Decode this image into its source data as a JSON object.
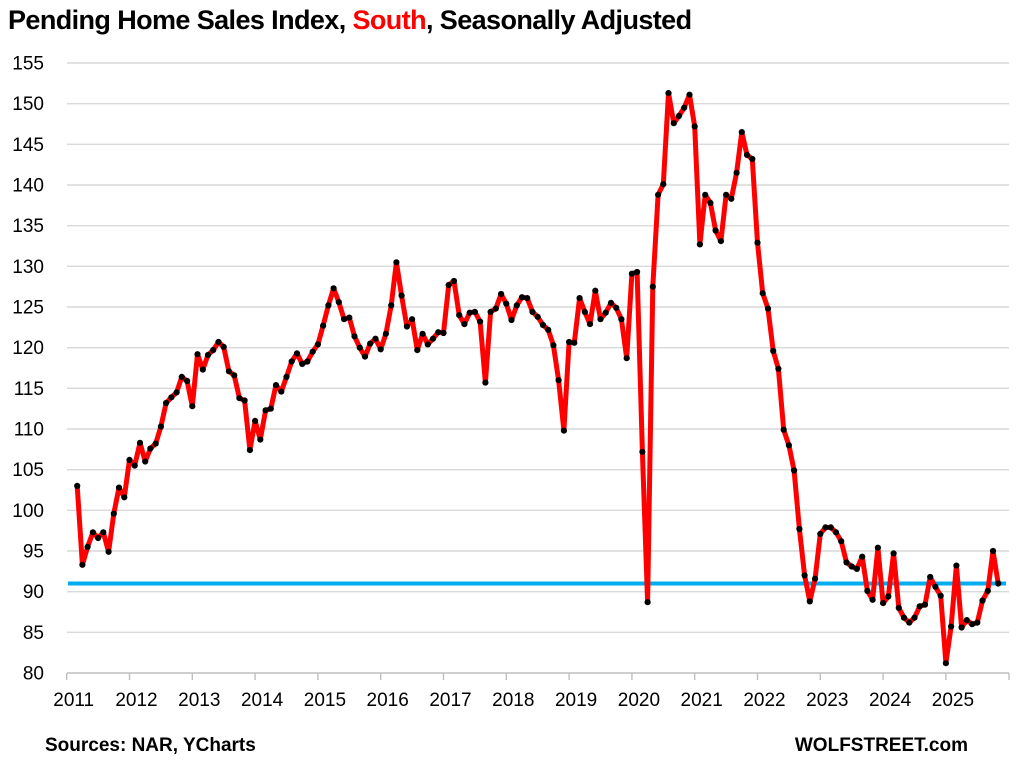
{
  "title": {
    "part1": "Pending Home Sales Index, ",
    "highlight": "South",
    "part2": ", Seasonally Adjusted",
    "highlight_color": "#ff0000"
  },
  "footer": {
    "sources": "Sources: NAR, YCharts",
    "brand": "WOLFSTREET.com"
  },
  "chart_data": {
    "type": "line",
    "title": "Pending Home Sales Index, South, Seasonally Adjusted",
    "x_start_month": "2011-03",
    "x_frequency": "monthly",
    "x_tick_labels": [
      "2011",
      "2012",
      "2013",
      "2014",
      "2015",
      "2016",
      "2017",
      "2018",
      "2019",
      "2020",
      "2021",
      "2022",
      "2023",
      "2024",
      "2025"
    ],
    "y_ticks": [
      80,
      85,
      90,
      95,
      100,
      105,
      110,
      115,
      120,
      125,
      130,
      135,
      140,
      145,
      150,
      155
    ],
    "ylim": [
      80,
      155
    ],
    "grid": "horizontal",
    "legend": "none",
    "series_color": "#ff0000",
    "marker_color": "#000000",
    "reference_line": {
      "value": 91.0,
      "color": "#00aeef"
    },
    "values": [
      103.0,
      93.3,
      95.5,
      97.3,
      96.6,
      97.3,
      94.9,
      99.6,
      102.8,
      101.6,
      106.2,
      105.5,
      108.3,
      106.0,
      107.6,
      108.2,
      110.3,
      113.2,
      113.9,
      114.5,
      116.4,
      115.9,
      112.8,
      119.2,
      117.3,
      119.1,
      119.7,
      120.7,
      120.1,
      117.1,
      116.6,
      113.8,
      113.5,
      107.4,
      111.0,
      108.7,
      112.3,
      112.5,
      115.4,
      114.6,
      116.4,
      118.3,
      119.3,
      118.0,
      118.3,
      119.5,
      120.4,
      122.7,
      125.2,
      127.3,
      125.6,
      123.5,
      123.7,
      121.4,
      120.0,
      118.9,
      120.5,
      121.1,
      119.8,
      121.7,
      125.2,
      130.5,
      126.4,
      122.6,
      123.5,
      119.7,
      121.7,
      120.4,
      121.1,
      121.9,
      121.8,
      127.7,
      128.2,
      124.0,
      122.9,
      124.3,
      124.4,
      123.2,
      115.7,
      124.4,
      124.8,
      126.6,
      125.4,
      123.4,
      125.2,
      126.2,
      126.1,
      124.4,
      123.8,
      122.8,
      122.2,
      120.3,
      116.0,
      109.8,
      120.7,
      120.6,
      126.1,
      124.4,
      122.9,
      127.0,
      123.5,
      124.3,
      125.5,
      124.9,
      123.5,
      118.7,
      129.1,
      129.3,
      107.2,
      88.7,
      127.5,
      138.8,
      140.1,
      151.3,
      147.6,
      148.5,
      149.5,
      151.1,
      147.2,
      132.7,
      138.8,
      137.8,
      134.4,
      133.1,
      138.8,
      138.3,
      141.5,
      146.5,
      143.7,
      143.2,
      132.9,
      126.7,
      124.8,
      119.6,
      117.4,
      109.9,
      108.0,
      104.9,
      97.7,
      92.0,
      88.8,
      91.6,
      97.1,
      97.9,
      97.9,
      97.3,
      96.2,
      93.6,
      93.1,
      92.8,
      94.3,
      90.1,
      89.0,
      95.4,
      88.6,
      89.4,
      94.7,
      88.0,
      86.8,
      86.2,
      86.8,
      88.2,
      88.4,
      91.8,
      90.6,
      89.5,
      81.2,
      85.7,
      93.2,
      85.6,
      86.5,
      86.0,
      86.2,
      88.9,
      90.1,
      95.0,
      91.0
    ]
  }
}
